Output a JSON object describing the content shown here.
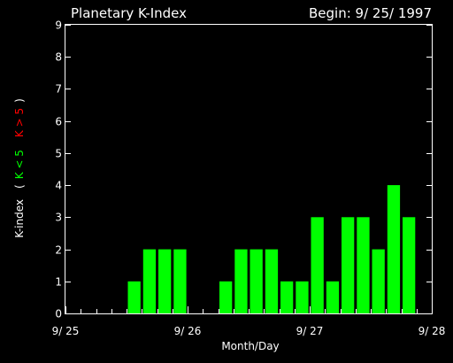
{
  "chart_data": {
    "type": "bar",
    "title": "Planetary K-Index",
    "subtitle": "Begin: 9/ 25/ 1997",
    "xlabel": "Month/Day",
    "ylabel": {
      "prefix": "K-index",
      "open": "(",
      "low": "K < 5",
      "high": "K > 5",
      "close": ")"
    },
    "ylim": [
      0,
      9
    ],
    "yticks": [
      "0",
      "1",
      "2",
      "3",
      "4",
      "5",
      "6",
      "7",
      "8",
      "9"
    ],
    "xlim": [
      0,
      24
    ],
    "xtick_labels": [
      "9/ 25",
      "9/ 26",
      "9/ 27",
      "9/ 28"
    ],
    "xtick_positions": [
      0,
      8,
      16,
      24
    ],
    "bins_per_day": 8,
    "values": [
      0,
      0,
      0,
      0,
      1,
      2,
      2,
      2,
      0,
      0,
      1,
      2,
      2,
      2,
      1,
      1,
      3,
      1,
      3,
      3,
      2,
      4,
      3,
      0
    ],
    "colors": {
      "background": "#000000",
      "axes": "#ffffff",
      "bar_low": "#00ff00",
      "bar_high": "#ff0000",
      "label_low": "#00ff00",
      "label_high": "#ff0000"
    }
  }
}
